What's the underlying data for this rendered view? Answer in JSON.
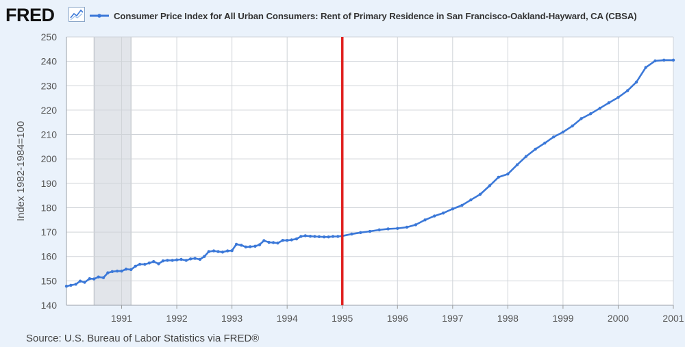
{
  "header": {
    "logo": "FRED",
    "logo_icon": "line-chart-icon"
  },
  "chart_data": {
    "type": "line",
    "title": "",
    "ylabel": "Index 1982-1984=100",
    "xlabel": "",
    "ylim": [
      140,
      250
    ],
    "xlim": [
      1990.0,
      2001.0
    ],
    "yticks": [
      140,
      150,
      160,
      170,
      180,
      190,
      200,
      210,
      220,
      230,
      240,
      250
    ],
    "xticks": [
      "1991",
      "1992",
      "1993",
      "1994",
      "1995",
      "1996",
      "1997",
      "1998",
      "1999",
      "2000",
      "2001"
    ],
    "grid": true,
    "legend_position": "top",
    "recession_shading": [
      1990.5,
      1991.17
    ],
    "annotation_line": {
      "x": 1995.0,
      "color": "#e0201e"
    },
    "series": [
      {
        "name": "Consumer Price Index for All Urban Consumers: Rent of Primary Residence in San Francisco-Oakland-Hayward, CA (CBSA)",
        "color": "#3b78d8",
        "x": [
          1990.0,
          1990.08,
          1990.17,
          1990.25,
          1990.33,
          1990.42,
          1990.5,
          1990.58,
          1990.67,
          1990.75,
          1990.83,
          1990.92,
          1991.0,
          1991.08,
          1991.17,
          1991.25,
          1991.33,
          1991.42,
          1991.5,
          1991.58,
          1991.67,
          1991.75,
          1991.83,
          1991.92,
          1992.0,
          1992.08,
          1992.17,
          1992.25,
          1992.33,
          1992.42,
          1992.5,
          1992.58,
          1992.67,
          1992.75,
          1992.83,
          1992.92,
          1993.0,
          1993.08,
          1993.17,
          1993.25,
          1993.33,
          1993.42,
          1993.5,
          1993.58,
          1993.67,
          1993.75,
          1993.83,
          1993.92,
          1994.0,
          1994.08,
          1994.17,
          1994.25,
          1994.33,
          1994.42,
          1994.5,
          1994.58,
          1994.67,
          1994.75,
          1994.83,
          1994.92,
          1995.0,
          1995.17,
          1995.33,
          1995.5,
          1995.67,
          1995.83,
          1996.0,
          1996.17,
          1996.33,
          1996.5,
          1996.67,
          1996.83,
          1997.0,
          1997.17,
          1997.33,
          1997.5,
          1997.67,
          1997.83,
          1998.0,
          1998.17,
          1998.33,
          1998.5,
          1998.67,
          1998.83,
          1999.0,
          1999.17,
          1999.33,
          1999.5,
          1999.67,
          1999.83,
          2000.0,
          2000.17,
          2000.33,
          2000.5,
          2000.67,
          2000.83,
          2001.0
        ],
        "y": [
          147.8,
          148.2,
          148.6,
          149.9,
          149.4,
          150.9,
          150.8,
          151.6,
          151.3,
          153.3,
          153.8,
          154.0,
          154.0,
          154.8,
          154.6,
          156.0,
          156.8,
          156.8,
          157.3,
          157.9,
          157.0,
          158.2,
          158.4,
          158.4,
          158.6,
          158.8,
          158.4,
          159.0,
          159.2,
          158.8,
          160.0,
          162.0,
          162.3,
          162.0,
          161.8,
          162.3,
          162.4,
          165.0,
          164.6,
          163.9,
          164.0,
          164.2,
          164.8,
          166.5,
          165.8,
          165.7,
          165.5,
          166.6,
          166.6,
          166.8,
          167.2,
          168.2,
          168.5,
          168.3,
          168.2,
          168.1,
          168.0,
          168.0,
          168.2,
          168.2,
          168.4,
          169.2,
          169.8,
          170.3,
          170.9,
          171.3,
          171.5,
          172.0,
          173.0,
          175.0,
          176.6,
          177.8,
          179.5,
          181.0,
          183.2,
          185.5,
          189.0,
          192.5,
          193.8,
          197.6,
          201.0,
          204.0,
          206.5,
          209.0,
          211.0,
          213.5,
          216.5,
          218.5,
          220.8,
          223.0,
          225.2,
          228.0,
          231.5,
          237.5,
          240.2,
          240.5,
          240.5
        ]
      }
    ]
  },
  "source": "Source: U.S. Bureau of Labor Statistics via FRED®"
}
